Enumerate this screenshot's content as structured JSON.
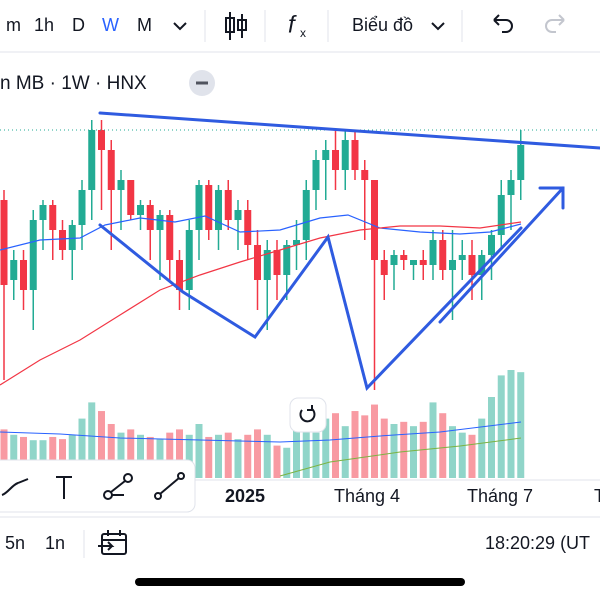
{
  "toolbar": {
    "intervals": [
      "m",
      "1h",
      "D",
      "W",
      "M"
    ],
    "active": "W",
    "chart_menu": "Biểu đồ"
  },
  "symbol_title": "n MB · 1W · HNX",
  "x_labels": [
    "2025",
    "Tháng 4",
    "Tháng 7",
    "T"
  ],
  "bottom_bar": {
    "ranges": [
      "5n",
      "1n"
    ],
    "clock": "18:20:29 (UT"
  },
  "chart_data": {
    "type": "candlestick",
    "ylim": [
      2,
      40
    ],
    "vlim": [
      0,
      100
    ],
    "up_color": "#22ab94",
    "down_color": "#f23645",
    "candles": [
      {
        "open": 30,
        "high": 31,
        "low": 12,
        "close": 21.5
      },
      {
        "open": 22,
        "high": 25,
        "low": 20,
        "close": 24
      },
      {
        "open": 24,
        "high": 25,
        "low": 19,
        "close": 21
      },
      {
        "open": 21,
        "high": 29,
        "low": 17,
        "close": 28
      },
      {
        "open": 28,
        "high": 30,
        "low": 25,
        "close": 29.5
      },
      {
        "open": 29.5,
        "high": 30,
        "low": 24,
        "close": 27
      },
      {
        "open": 27,
        "high": 28,
        "low": 24,
        "close": 25
      },
      {
        "open": 25,
        "high": 28,
        "low": 22,
        "close": 27.5
      },
      {
        "open": 27.5,
        "high": 32,
        "low": 25,
        "close": 31
      },
      {
        "open": 31,
        "high": 38,
        "low": 28,
        "close": 37
      },
      {
        "open": 37,
        "high": 38,
        "low": 29,
        "close": 35
      },
      {
        "open": 35,
        "high": 36,
        "low": 25,
        "close": 31
      },
      {
        "open": 31,
        "high": 33,
        "low": 27,
        "close": 32
      },
      {
        "open": 32,
        "high": 32,
        "low": 28,
        "close": 28.5
      },
      {
        "open": 28.5,
        "high": 30,
        "low": 27,
        "close": 29.5
      },
      {
        "open": 29.5,
        "high": 30,
        "low": 24,
        "close": 27
      },
      {
        "open": 27,
        "high": 29,
        "low": 22,
        "close": 28.5
      },
      {
        "open": 28.5,
        "high": 29,
        "low": 22,
        "close": 24
      },
      {
        "open": 24,
        "high": 25,
        "low": 19,
        "close": 21
      },
      {
        "open": 21,
        "high": 28,
        "low": 19,
        "close": 27
      },
      {
        "open": 27,
        "high": 32,
        "low": 24,
        "close": 31.5
      },
      {
        "open": 31.5,
        "high": 32,
        "low": 26,
        "close": 27
      },
      {
        "open": 27,
        "high": 31.5,
        "low": 25,
        "close": 31
      },
      {
        "open": 31,
        "high": 32,
        "low": 27,
        "close": 28
      },
      {
        "open": 28,
        "high": 30,
        "low": 25,
        "close": 29
      },
      {
        "open": 29,
        "high": 30,
        "low": 24,
        "close": 25.5
      },
      {
        "open": 25.5,
        "high": 27,
        "low": 19,
        "close": 22
      },
      {
        "open": 22,
        "high": 26,
        "low": 17,
        "close": 25
      },
      {
        "open": 25,
        "high": 26,
        "low": 20,
        "close": 22.5
      },
      {
        "open": 22.5,
        "high": 26,
        "low": 20,
        "close": 25.5
      },
      {
        "open": 25.5,
        "high": 28,
        "low": 23,
        "close": 26
      },
      {
        "open": 26,
        "high": 32,
        "low": 24,
        "close": 31
      },
      {
        "open": 31,
        "high": 35,
        "low": 29,
        "close": 34
      },
      {
        "open": 34,
        "high": 36,
        "low": 30,
        "close": 35
      },
      {
        "open": 35,
        "high": 37,
        "low": 31,
        "close": 33
      },
      {
        "open": 33,
        "high": 37,
        "low": 31,
        "close": 36
      },
      {
        "open": 36,
        "high": 37,
        "low": 32,
        "close": 33
      },
      {
        "open": 33,
        "high": 34,
        "low": 26,
        "close": 32
      },
      {
        "open": 32,
        "high": 32,
        "low": 11,
        "close": 24
      },
      {
        "open": 24,
        "high": 25,
        "low": 20,
        "close": 22.5
      },
      {
        "open": 23.5,
        "high": 25,
        "low": 21,
        "close": 24.5
      },
      {
        "open": 24.5,
        "high": 25,
        "low": 23,
        "close": 24
      },
      {
        "open": 23.5,
        "high": 24,
        "low": 22,
        "close": 24
      },
      {
        "open": 24,
        "high": 25,
        "low": 22,
        "close": 23.5
      },
      {
        "open": 23.5,
        "high": 27,
        "low": 22,
        "close": 26
      },
      {
        "open": 26,
        "high": 27,
        "low": 22,
        "close": 23
      },
      {
        "open": 23,
        "high": 27,
        "low": 18,
        "close": 24
      },
      {
        "open": 24,
        "high": 26,
        "low": 22,
        "close": 24.5
      },
      {
        "open": 24.5,
        "high": 26,
        "low": 20,
        "close": 22.5
      },
      {
        "open": 22.5,
        "high": 25,
        "low": 20,
        "close": 24.5
      },
      {
        "open": 24.5,
        "high": 27,
        "low": 22,
        "close": 26.5
      },
      {
        "open": 26.5,
        "high": 32,
        "low": 25,
        "close": 30.5
      },
      {
        "open": 30.5,
        "high": 33,
        "low": 27,
        "close": 32
      },
      {
        "open": 32,
        "high": 37,
        "low": 30,
        "close": 35.5
      }
    ],
    "volumes": [
      45,
      40,
      38,
      35,
      35,
      38,
      36,
      40,
      55,
      70,
      62,
      50,
      42,
      45,
      40,
      38,
      36,
      42,
      45,
      40,
      50,
      38,
      40,
      42,
      36,
      40,
      45,
      40,
      30,
      28,
      45,
      50,
      42,
      55,
      60,
      48,
      62,
      58,
      68,
      55,
      50,
      52,
      48,
      52,
      70,
      60,
      48,
      42,
      40,
      55,
      75,
      95,
      100,
      98
    ]
  }
}
